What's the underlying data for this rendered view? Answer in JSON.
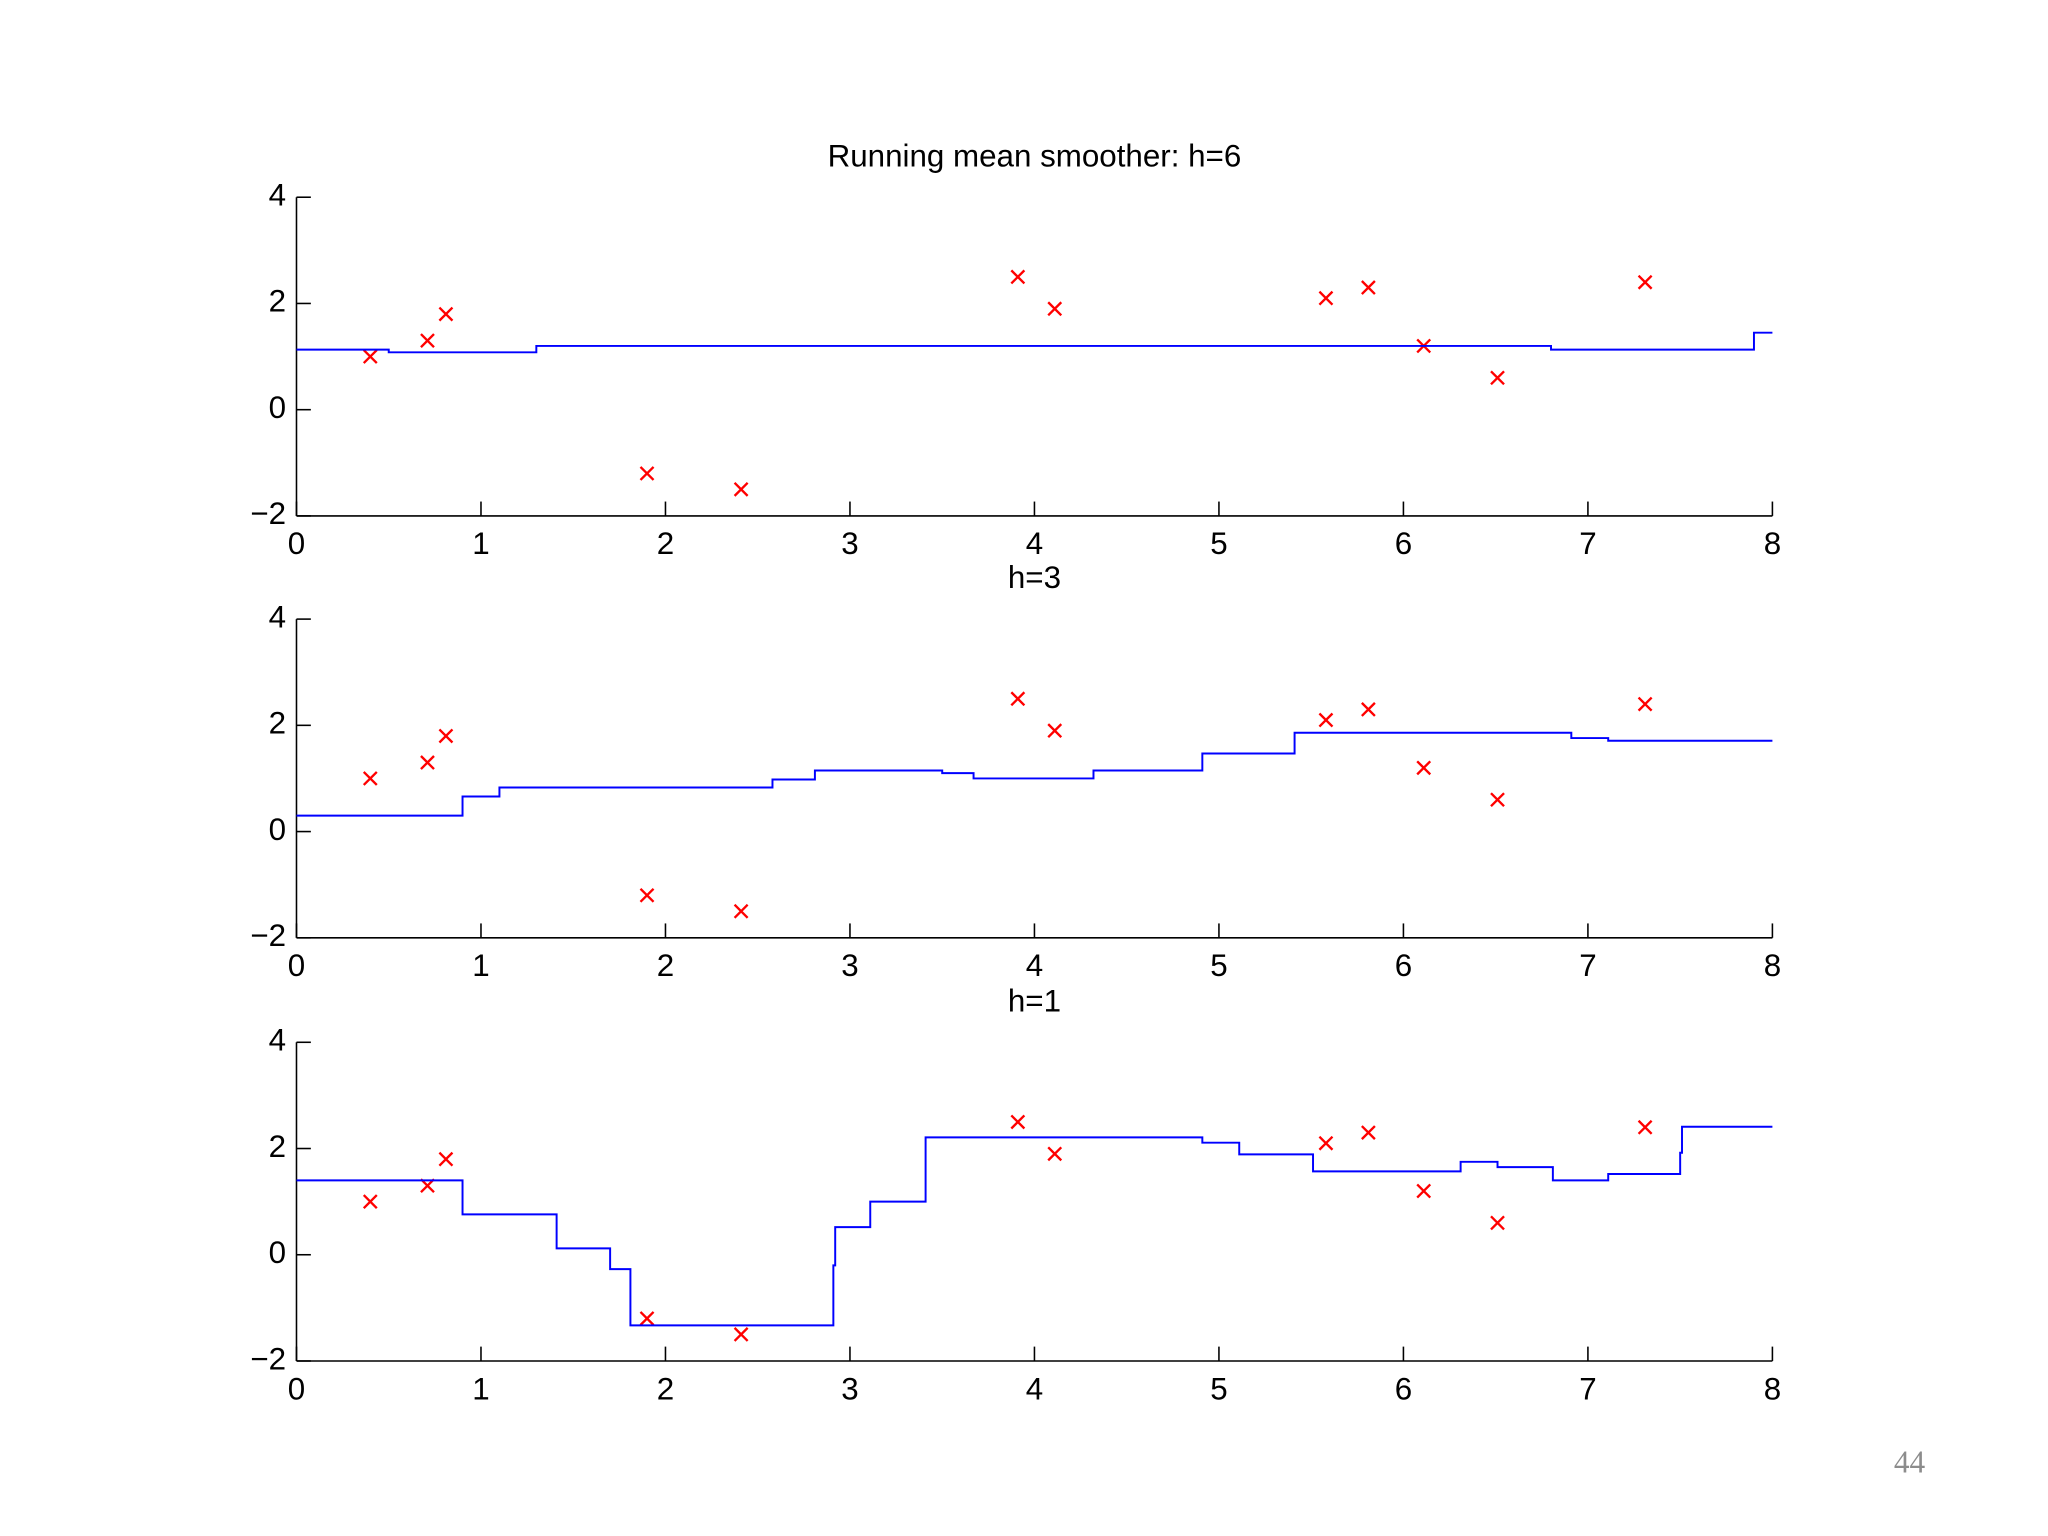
{
  "chart_data": [
    {
      "type": "line",
      "title": "Running mean smoother: h=6",
      "xlim": [
        0,
        8
      ],
      "ylim": [
        -2,
        4
      ],
      "xticks": [
        0,
        1,
        2,
        3,
        4,
        5,
        6,
        7,
        8
      ],
      "yticks": [
        {
          "value": -2,
          "label": "−2"
        },
        0,
        2,
        4
      ],
      "series": [
        {
          "type": "scatter",
          "color": "#ff0000",
          "x": [
            0.4,
            0.71,
            0.81,
            1.9,
            2.41,
            3.91,
            4.11,
            5.58,
            5.81,
            6.11,
            6.51,
            7.31
          ],
          "values": [
            1.0,
            1.3,
            1.8,
            -1.2,
            -1.5,
            2.5,
            1.9,
            2.1,
            2.3,
            1.2,
            0.6,
            2.4
          ]
        },
        {
          "type": "line",
          "color": "#0000ff",
          "x": [
            0,
            0.5,
            0.5,
            1.3,
            1.3,
            6.8,
            6.8,
            7.9,
            7.9,
            8
          ],
          "values": [
            1.13,
            1.13,
            1.08,
            1.08,
            1.2,
            1.2,
            1.13,
            1.13,
            1.45,
            1.45
          ]
        }
      ]
    },
    {
      "type": "line",
      "title": "h=3",
      "xlim": [
        0,
        8
      ],
      "ylim": [
        -2,
        4
      ],
      "xticks": [
        0,
        1,
        2,
        3,
        4,
        5,
        6,
        7,
        8
      ],
      "yticks": [
        {
          "value": -2,
          "label": "−2"
        },
        0,
        2,
        4
      ],
      "series": [
        {
          "type": "scatter",
          "color": "#ff0000",
          "x": [
            0.4,
            0.71,
            0.81,
            1.9,
            2.41,
            3.91,
            4.11,
            5.58,
            5.81,
            6.11,
            6.51,
            7.31
          ],
          "values": [
            1.0,
            1.3,
            1.8,
            -1.2,
            -1.5,
            2.5,
            1.9,
            2.1,
            2.3,
            1.2,
            0.6,
            2.4
          ]
        },
        {
          "type": "line",
          "color": "#0000ff",
          "x": [
            0,
            0.9,
            0.9,
            1.1,
            1.1,
            2.58,
            2.58,
            2.81,
            2.81,
            3.5,
            3.5,
            3.67,
            3.67,
            4.32,
            4.32,
            4.91,
            4.91,
            5.41,
            5.41,
            6.91,
            6.91,
            7.11,
            7.11,
            8
          ],
          "values": [
            0.3,
            0.3,
            0.66,
            0.66,
            0.83,
            0.83,
            0.98,
            0.98,
            1.15,
            1.15,
            1.1,
            1.1,
            1.0,
            1.0,
            1.15,
            1.15,
            1.47,
            1.47,
            1.86,
            1.86,
            1.76,
            1.76,
            1.71,
            1.71
          ]
        }
      ]
    },
    {
      "type": "line",
      "title": "h=1",
      "xlim": [
        0,
        8
      ],
      "ylim": [
        -2,
        4
      ],
      "xticks": [
        0,
        1,
        2,
        3,
        4,
        5,
        6,
        7,
        8
      ],
      "yticks": [
        {
          "value": -2,
          "label": "−2"
        },
        0,
        2,
        4
      ],
      "series": [
        {
          "type": "scatter",
          "color": "#ff0000",
          "x": [
            0.4,
            0.71,
            0.81,
            1.9,
            2.41,
            3.91,
            4.11,
            5.58,
            5.81,
            6.11,
            6.51,
            7.31
          ],
          "values": [
            1.0,
            1.3,
            1.8,
            -1.2,
            -1.5,
            2.5,
            1.9,
            2.1,
            2.3,
            1.2,
            0.6,
            2.4
          ]
        },
        {
          "type": "line",
          "color": "#0000ff",
          "x": [
            0,
            0.9,
            0.9,
            1.41,
            1.41,
            1.7,
            1.7,
            1.81,
            1.81,
            2.91,
            2.91,
            2.92,
            2.92,
            3.11,
            3.11,
            3.41,
            3.41,
            4.91,
            4.91,
            5.11,
            5.11,
            5.51,
            5.51,
            6.31,
            6.31,
            6.51,
            6.51,
            6.81,
            6.81,
            7.11,
            7.11,
            7.5,
            7.5,
            7.51,
            7.51,
            8
          ],
          "values": [
            1.4,
            1.4,
            0.76,
            0.76,
            0.12,
            0.12,
            -0.27,
            -0.27,
            -1.33,
            -1.33,
            -0.2,
            -0.2,
            0.52,
            0.52,
            1.0,
            1.0,
            2.21,
            2.21,
            2.11,
            2.11,
            1.89,
            1.89,
            1.57,
            1.57,
            1.75,
            1.75,
            1.65,
            1.65,
            1.4,
            1.4,
            1.52,
            1.52,
            1.92,
            1.92,
            2.41,
            2.41
          ]
        }
      ]
    }
  ],
  "page_number": "44"
}
